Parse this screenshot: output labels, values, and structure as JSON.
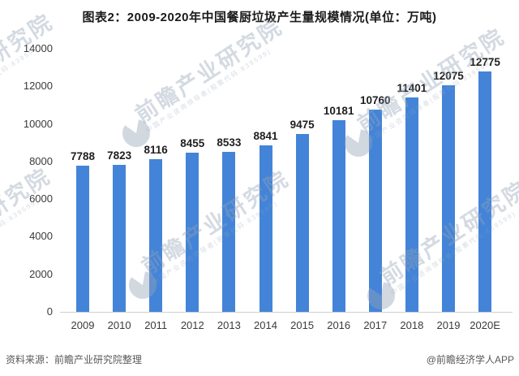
{
  "page": {
    "title": "图表2：2009-2020年中国餐厨垃圾产生量规模情况(单位：万吨)"
  },
  "footer": {
    "source": "资料来源：前瞻产业研究院整理",
    "credit": "@前瞻经济学人APP"
  },
  "watermark": {
    "brand": "前瞻产业研究院",
    "tagline": "中国产业咨询领导者(股票代码:839599)"
  },
  "chart_data": {
    "type": "bar",
    "title": "图表2：2009-2020年中国餐厨垃圾产生量规模情况(单位：万吨)",
    "unit": "万吨",
    "categories": [
      "2009",
      "2010",
      "2011",
      "2012",
      "2013",
      "2014",
      "2015",
      "2016",
      "2017",
      "2018",
      "2019",
      "2020E"
    ],
    "values": [
      7788,
      7823,
      8116,
      8455,
      8533,
      8841,
      9475,
      10181,
      10760,
      11401,
      12075,
      12775
    ],
    "xlabel": "",
    "ylabel": "",
    "ylim": [
      0,
      14000
    ],
    "yticks": [
      0,
      2000,
      4000,
      6000,
      8000,
      10000,
      12000,
      14000
    ],
    "grid": false,
    "legend": false,
    "data_labels": true,
    "colors": {
      "bar": "#4384d8",
      "value_label": "#1f1f1f",
      "axis_text": "#3a3a3a",
      "axis_line": "#cfcfcf",
      "watermark": "#94a2b6"
    }
  }
}
